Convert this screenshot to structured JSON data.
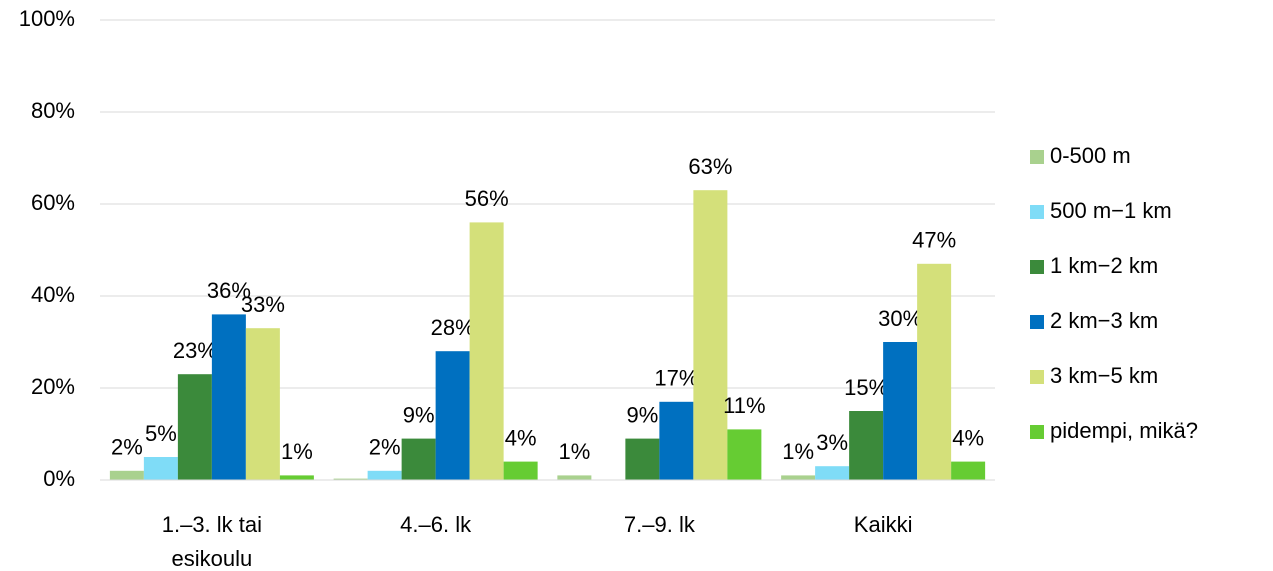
{
  "chart_data": {
    "type": "bar",
    "categories": [
      "1.–3. lk tai esikoulu",
      "4.–6. lk",
      "7.–9. lk",
      "Kaikki"
    ],
    "series": [
      {
        "name": "0-500 m",
        "color": "#a9d18e",
        "values": [
          2,
          0.3,
          1,
          1
        ],
        "value_labels": [
          "2%",
          null,
          "1%",
          "1%"
        ]
      },
      {
        "name": "500 m−1 km",
        "color": "#7fdcf7",
        "values": [
          5,
          2,
          null,
          3
        ],
        "value_labels": [
          "5%",
          "2%",
          null,
          "3%"
        ]
      },
      {
        "name": "1 km−2 km",
        "color": "#3b8a3b",
        "values": [
          23,
          9,
          9,
          15
        ],
        "value_labels": [
          "23%",
          "9%",
          "9%",
          "15%"
        ]
      },
      {
        "name": "2 km−3 km",
        "color": "#0070c0",
        "values": [
          36,
          28,
          17,
          30
        ],
        "value_labels": [
          "36%",
          "28%",
          "17%",
          "30%"
        ]
      },
      {
        "name": "3 km−5 km",
        "color": "#d4e07a",
        "values": [
          33,
          56,
          63,
          47
        ],
        "value_labels": [
          "33%",
          "56%",
          "63%",
          "47%"
        ]
      },
      {
        "name": "pidempi, mikä?",
        "color": "#66cc33",
        "values": [
          1,
          4,
          11,
          4
        ],
        "value_labels": [
          "1%",
          "4%",
          "11%",
          "4%"
        ]
      }
    ],
    "ylim": [
      0,
      100
    ],
    "yticks": [
      {
        "value": 0,
        "label": "0%"
      },
      {
        "value": 20,
        "label": "20%"
      },
      {
        "value": 40,
        "label": "40%"
      },
      {
        "value": 60,
        "label": "60%"
      },
      {
        "value": 80,
        "label": "80%"
      },
      {
        "value": 100,
        "label": "100%"
      }
    ],
    "grid": true,
    "legend": "right"
  }
}
